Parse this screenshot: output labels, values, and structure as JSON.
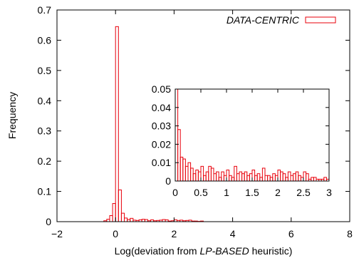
{
  "chart_data": [
    {
      "type": "bar",
      "role": "main",
      "xlabel_prefix": "Log(deviation from ",
      "xlabel_emph": "LP-BASED",
      "xlabel_suffix": " heuristic)",
      "ylabel": "Frequency",
      "xlim": [
        -2,
        8
      ],
      "ylim": [
        0,
        0.7
      ],
      "xticks": [
        -2,
        0,
        2,
        4,
        6,
        8
      ],
      "xtick_labels": [
        "−2",
        "0",
        "2",
        "4",
        "6",
        "8"
      ],
      "yticks": [
        0,
        0.1,
        0.2,
        0.3,
        0.4,
        0.5,
        0.6,
        0.7
      ],
      "ytick_labels": [
        "0",
        "0.1",
        "0.2",
        "0.3",
        "0.4",
        "0.5",
        "0.6",
        "0.7"
      ],
      "legend_position": "top-right",
      "bin_width": 0.1,
      "bar_color": "#e8000b",
      "series": [
        {
          "name": "DATA-CENTRIC",
          "bins_start": [
            -0.4,
            -0.3,
            -0.2,
            -0.1,
            0.0,
            0.1,
            0.2,
            0.3,
            0.4,
            0.5,
            0.6,
            0.7,
            0.8,
            0.9,
            1.0,
            1.1,
            1.2,
            1.3,
            1.4,
            1.5,
            1.6,
            1.7,
            1.8,
            1.9,
            2.0,
            2.1,
            2.2,
            2.3,
            2.4,
            2.5,
            2.6,
            2.7,
            2.8,
            2.9
          ],
          "values": [
            0.003,
            0.008,
            0.02,
            0.06,
            0.645,
            0.105,
            0.028,
            0.012,
            0.007,
            0.011,
            0.005,
            0.004,
            0.006,
            0.008,
            0.007,
            0.003,
            0.006,
            0.003,
            0.004,
            0.005,
            0.007,
            0.006,
            0.002,
            0.003,
            0.006,
            0.004,
            0.005,
            0.003,
            0.004,
            0.005,
            0.002,
            0.002,
            0.001,
            0.002
          ]
        }
      ]
    },
    {
      "type": "bar",
      "role": "inset",
      "xlim": [
        0,
        3
      ],
      "ylim": [
        0,
        0.05
      ],
      "xticks": [
        0,
        0.5,
        1,
        1.5,
        2,
        2.5,
        3
      ],
      "xtick_labels": [
        "0",
        "0.5",
        "1",
        "1.5",
        "2",
        "2.5",
        "3"
      ],
      "yticks": [
        0,
        0.01,
        0.02,
        0.03,
        0.04,
        0.05
      ],
      "ytick_labels": [
        "0",
        "0.01",
        "0.02",
        "0.03",
        "0.04",
        "0.05"
      ],
      "bin_width": 0.05,
      "bar_color": "#e8000b",
      "series": [
        {
          "bins_start": [
            0.0,
            0.05,
            0.1,
            0.15,
            0.2,
            0.25,
            0.3,
            0.35,
            0.4,
            0.45,
            0.5,
            0.55,
            0.6,
            0.65,
            0.7,
            0.75,
            0.8,
            0.85,
            0.9,
            0.95,
            1.0,
            1.05,
            1.1,
            1.15,
            1.2,
            1.25,
            1.3,
            1.35,
            1.4,
            1.45,
            1.5,
            1.55,
            1.6,
            1.65,
            1.7,
            1.75,
            1.8,
            1.85,
            1.9,
            1.95,
            2.0,
            2.05,
            2.1,
            2.15,
            2.2,
            2.25,
            2.3,
            2.35,
            2.4,
            2.45,
            2.5,
            2.55,
            2.6,
            2.65,
            2.7,
            2.75,
            2.8,
            2.85,
            2.9,
            2.95
          ],
          "values": [
            0.05,
            0.028,
            0.013,
            0.012,
            0.008,
            0.01,
            0.007,
            0.004,
            0.006,
            0.005,
            0.008,
            0.003,
            0.005,
            0.008,
            0.007,
            0.004,
            0.005,
            0.002,
            0.005,
            0.003,
            0.006,
            0.003,
            0.002,
            0.008,
            0.004,
            0.005,
            0.004,
            0.005,
            0.003,
            0.004,
            0.006,
            0.003,
            0.004,
            0.002,
            0.007,
            0.003,
            0.003,
            0.002,
            0.004,
            0.003,
            0.006,
            0.005,
            0.004,
            0.002,
            0.005,
            0.003,
            0.004,
            0.005,
            0.003,
            0.002,
            0.005,
            0.004,
            0.001,
            0.002,
            0.002,
            0.001,
            0.001,
            0.001,
            0.002,
            0.001
          ]
        }
      ]
    }
  ]
}
